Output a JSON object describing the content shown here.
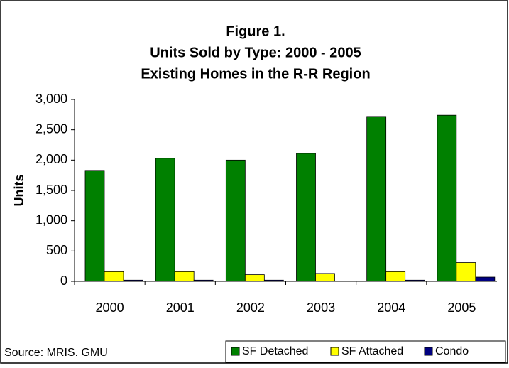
{
  "chart_data": {
    "type": "bar",
    "title": [
      "Figure 1.",
      "Units Sold by Type: 2000 - 2005",
      "Existing Homes in the R-R Region"
    ],
    "y_label": "Units",
    "source": "Source: MRIS. GMU",
    "categories": [
      "2000",
      "2001",
      "2002",
      "2003",
      "2004",
      "2005"
    ],
    "series": [
      {
        "name": "SF Detached",
        "color": "#008000",
        "values": [
          1830,
          2030,
          2000,
          2110,
          2720,
          2740
        ]
      },
      {
        "name": "SF Attached",
        "color": "#ffff00",
        "values": [
          160,
          160,
          110,
          130,
          160,
          310
        ]
      },
      {
        "name": "Condo",
        "color": "#000080",
        "values": [
          20,
          20,
          20,
          0,
          20,
          70
        ]
      }
    ],
    "ylim": [
      0,
      3000
    ],
    "yticks": [
      0,
      500,
      {
        "value": 1000,
        "label": "1,000"
      },
      {
        "value": 1500,
        "label": "1,500"
      },
      {
        "value": 2000,
        "label": "2,000"
      },
      {
        "value": 2500,
        "label": "2,500"
      },
      {
        "value": 3000,
        "label": "3,000"
      }
    ],
    "grid": false
  }
}
